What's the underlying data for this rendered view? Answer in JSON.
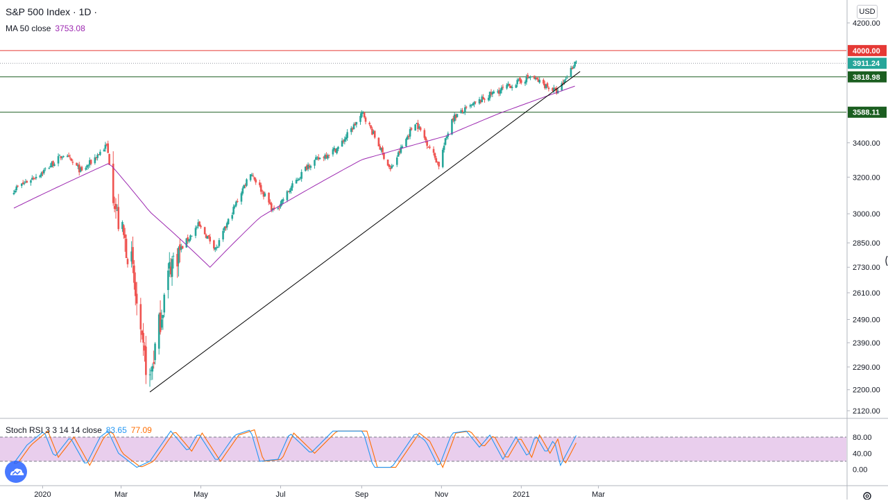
{
  "header": {
    "title": "S&P 500 Index · 1D · ",
    "ma_label": "MA 50 close",
    "ma_value": "3753.08",
    "stoch_label": "Stoch RSI 3 3 14 14 close",
    "stoch_k": "83.65",
    "stoch_d": "77.09"
  },
  "currency_button": "USD",
  "colors": {
    "up": "#26a69a",
    "down": "#ef5350",
    "ma": "#9c27b0",
    "resistance": "#e53935",
    "support": "#1b5e20",
    "last_price": "#26a69a",
    "k_line": "#2196f3",
    "d_line": "#ff6d00",
    "rsi_band": "#e1bee7"
  },
  "chart_data": [
    {
      "type": "candlestick",
      "title": "S&P 500 Index",
      "interval": "1D",
      "y_axis_ticks": [
        "4200.00",
        "3400.00",
        "3200.00",
        "3000.00",
        "2850.00",
        "2730.00",
        "2610.00",
        "2490.00",
        "2390.00",
        "2290.00",
        "2200.00",
        "2120.00"
      ],
      "x_axis_ticks": [
        "2020",
        "Mar",
        "May",
        "Jul",
        "Sep",
        "Nov",
        "2021",
        "Mar"
      ],
      "ylim": [
        2100,
        4250
      ],
      "y_scale": "log",
      "grid": false,
      "price_series_approx": [
        {
          "x": "2019-12-10",
          "y": 3130
        },
        {
          "x": "2020-01-01",
          "y": 3230
        },
        {
          "x": "2020-01-17",
          "y": 3330
        },
        {
          "x": "2020-01-31",
          "y": 3230
        },
        {
          "x": "2020-02-19",
          "y": 3386
        },
        {
          "x": "2020-02-27",
          "y": 2980
        },
        {
          "x": "2020-03-09",
          "y": 2750
        },
        {
          "x": "2020-03-16",
          "y": 2390
        },
        {
          "x": "2020-03-23",
          "y": 2237
        },
        {
          "x": "2020-04-08",
          "y": 2750
        },
        {
          "x": "2020-04-29",
          "y": 2940
        },
        {
          "x": "2020-05-13",
          "y": 2820
        },
        {
          "x": "2020-06-08",
          "y": 3230
        },
        {
          "x": "2020-06-26",
          "y": 3010
        },
        {
          "x": "2020-07-22",
          "y": 3270
        },
        {
          "x": "2020-08-14",
          "y": 3370
        },
        {
          "x": "2020-09-02",
          "y": 3580
        },
        {
          "x": "2020-09-23",
          "y": 3240
        },
        {
          "x": "2020-10-12",
          "y": 3530
        },
        {
          "x": "2020-10-30",
          "y": 3270
        },
        {
          "x": "2020-11-09",
          "y": 3550
        },
        {
          "x": "2020-12-08",
          "y": 3700
        },
        {
          "x": "2021-01-08",
          "y": 3820
        },
        {
          "x": "2021-01-29",
          "y": 3715
        },
        {
          "x": "2021-02-12",
          "y": 3934
        }
      ],
      "moving_average": {
        "name": "MA 50 close",
        "value": 3753.08,
        "points_approx": [
          {
            "x": "2019-12-10",
            "y": 3030
          },
          {
            "x": "2020-02-21",
            "y": 3280
          },
          {
            "x": "2020-03-23",
            "y": 3010
          },
          {
            "x": "2020-05-08",
            "y": 2730
          },
          {
            "x": "2020-06-15",
            "y": 2980
          },
          {
            "x": "2020-09-01",
            "y": 3300
          },
          {
            "x": "2020-11-04",
            "y": 3440
          },
          {
            "x": "2020-12-15",
            "y": 3580
          },
          {
            "x": "2021-02-12",
            "y": 3760
          }
        ]
      },
      "trendline": {
        "from": {
          "x": "2020-03-23",
          "y": 2191
        },
        "to": {
          "x": "2021-02-15",
          "y": 3855
        }
      },
      "horizontal_levels": [
        {
          "label": "4000.00",
          "value": 4000.0,
          "color": "#e53935"
        },
        {
          "label": "3818.98",
          "value": 3818.98,
          "color": "#1b5e20"
        },
        {
          "label": "3588.11",
          "value": 3588.11,
          "color": "#1b5e20"
        }
      ],
      "last_price": {
        "label": "3911.24",
        "value": 3911.24
      }
    },
    {
      "type": "line",
      "title": "Stoch RSI 3 3 14 14 close",
      "y_axis_ticks": [
        "80.00",
        "40.00",
        "0.00"
      ],
      "band": [
        20,
        80
      ],
      "ylim": [
        -5,
        105
      ],
      "series": [
        {
          "name": "K",
          "last": 83.65
        },
        {
          "name": "D",
          "last": 77.09
        }
      ],
      "k_points_approx": [
        {
          "x": "2019-12-10",
          "y": 15
        },
        {
          "x": "2019-12-20",
          "y": 60
        },
        {
          "x": "2020-01-02",
          "y": 95
        },
        {
          "x": "2020-01-10",
          "y": 30
        },
        {
          "x": "2020-01-22",
          "y": 80
        },
        {
          "x": "2020-02-03",
          "y": 10
        },
        {
          "x": "2020-02-14",
          "y": 80
        },
        {
          "x": "2020-02-20",
          "y": 95
        },
        {
          "x": "2020-02-28",
          "y": 40
        },
        {
          "x": "2020-03-13",
          "y": 5
        },
        {
          "x": "2020-03-23",
          "y": 20
        },
        {
          "x": "2020-04-08",
          "y": 95
        },
        {
          "x": "2020-04-21",
          "y": 45
        },
        {
          "x": "2020-04-29",
          "y": 90
        },
        {
          "x": "2020-05-13",
          "y": 20
        },
        {
          "x": "2020-05-27",
          "y": 85
        },
        {
          "x": "2020-06-08",
          "y": 98
        },
        {
          "x": "2020-06-15",
          "y": 20
        },
        {
          "x": "2020-06-29",
          "y": 25
        },
        {
          "x": "2020-07-08",
          "y": 90
        },
        {
          "x": "2020-07-24",
          "y": 40
        },
        {
          "x": "2020-08-10",
          "y": 95
        },
        {
          "x": "2020-09-02",
          "y": 95
        },
        {
          "x": "2020-09-10",
          "y": 5
        },
        {
          "x": "2020-09-24",
          "y": 5
        },
        {
          "x": "2020-10-12",
          "y": 90
        },
        {
          "x": "2020-10-20",
          "y": 70
        },
        {
          "x": "2020-10-30",
          "y": 5
        },
        {
          "x": "2020-11-09",
          "y": 90
        },
        {
          "x": "2020-11-20",
          "y": 95
        },
        {
          "x": "2020-11-30",
          "y": 55
        },
        {
          "x": "2020-12-08",
          "y": 85
        },
        {
          "x": "2020-12-18",
          "y": 25
        },
        {
          "x": "2020-12-28",
          "y": 80
        },
        {
          "x": "2021-01-06",
          "y": 30
        },
        {
          "x": "2021-01-12",
          "y": 85
        },
        {
          "x": "2021-01-20",
          "y": 40
        },
        {
          "x": "2021-01-26",
          "y": 75
        },
        {
          "x": "2021-01-31",
          "y": 10
        },
        {
          "x": "2021-02-12",
          "y": 84
        }
      ]
    }
  ]
}
